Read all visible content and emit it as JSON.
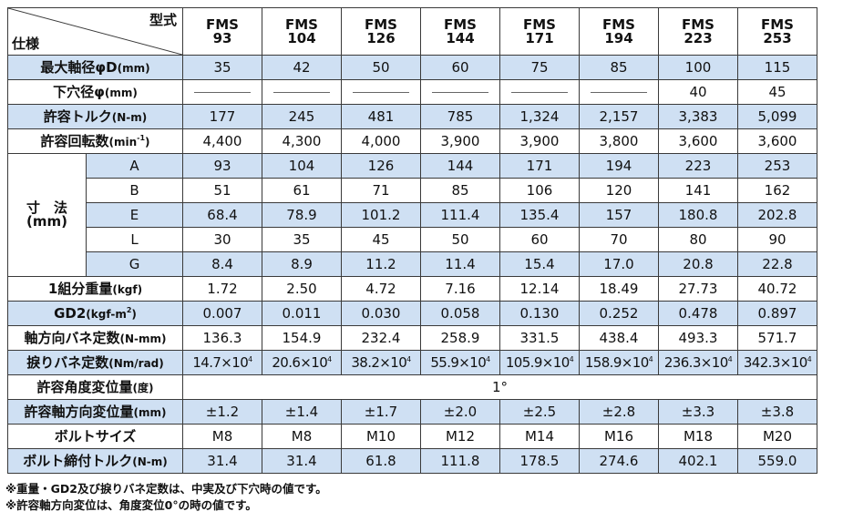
{
  "header": {
    "corner_top": "型式",
    "corner_bottom": "仕様",
    "models": [
      {
        "name": "FMS",
        "size": "93"
      },
      {
        "name": "FMS",
        "size": "104"
      },
      {
        "name": "FMS",
        "size": "126"
      },
      {
        "name": "FMS",
        "size": "144"
      },
      {
        "name": "FMS",
        "size": "171"
      },
      {
        "name": "FMS",
        "size": "194"
      },
      {
        "name": "FMS",
        "size": "223"
      },
      {
        "name": "FMS",
        "size": "253"
      }
    ]
  },
  "rows": {
    "max_bore": {
      "label": "最大軸径φD",
      "unit": "(mm)",
      "values": [
        "35",
        "42",
        "50",
        "60",
        "75",
        "85",
        "100",
        "115"
      ]
    },
    "pilot_bore": {
      "label": "下穴径φ",
      "unit": "(mm)",
      "values": [
        "",
        "",
        "",
        "",
        "",
        "",
        "40",
        "45"
      ]
    },
    "torque": {
      "label": "許容トルク",
      "unit": "(N-m)",
      "values": [
        "177",
        "245",
        "481",
        "785",
        "1,324",
        "2,157",
        "3,383",
        "5,099"
      ]
    },
    "speed": {
      "label": "許容回転数",
      "unit": "(min",
      "unit_sup": "-1",
      "unit_end": ")",
      "values": [
        "4,400",
        "4,300",
        "4,000",
        "3,900",
        "3,900",
        "3,800",
        "3,600",
        "3,600"
      ]
    },
    "dimension_label": {
      "line1": "寸　法",
      "line2": "(mm)"
    },
    "dims": [
      {
        "key": "A",
        "values": [
          "93",
          "104",
          "126",
          "144",
          "171",
          "194",
          "223",
          "253"
        ]
      },
      {
        "key": "B",
        "values": [
          "51",
          "61",
          "71",
          "85",
          "106",
          "120",
          "141",
          "162"
        ]
      },
      {
        "key": "E",
        "values": [
          "68.4",
          "78.9",
          "101.2",
          "111.4",
          "135.4",
          "157",
          "180.8",
          "202.8"
        ]
      },
      {
        "key": "L",
        "values": [
          "30",
          "35",
          "45",
          "50",
          "60",
          "70",
          "80",
          "90"
        ]
      },
      {
        "key": "G",
        "values": [
          "8.4",
          "8.9",
          "11.2",
          "11.4",
          "15.4",
          "17.0",
          "20.8",
          "22.8"
        ]
      }
    ],
    "weight": {
      "label": "1組分重量",
      "unit": "(kgf)",
      "values": [
        "1.72",
        "2.50",
        "4.72",
        "7.16",
        "12.14",
        "18.49",
        "27.73",
        "40.72"
      ]
    },
    "gd2": {
      "label": "GD2",
      "unit": "(kgf-m",
      "unit_sup": "2",
      "unit_end": ")",
      "values": [
        "0.007",
        "0.011",
        "0.030",
        "0.058",
        "0.130",
        "0.252",
        "0.478",
        "0.897"
      ]
    },
    "axial_spring": {
      "label": "軸方向バネ定数",
      "unit": "(N-mm)",
      "values": [
        "136.3",
        "154.9",
        "232.4",
        "258.9",
        "331.5",
        "438.4",
        "493.3",
        "571.7"
      ]
    },
    "torsion_spring": {
      "label": "捩りバネ定数",
      "unit": "(Nm/rad)",
      "values": [
        "14.7×10",
        "20.6×10",
        "38.2×10",
        "55.9×10",
        "105.9×10",
        "158.9×10",
        "236.3×10",
        "342.3×10"
      ],
      "exp": "4"
    },
    "angular": {
      "label": "許容角度変位量",
      "unit": "(度)",
      "value": "1°"
    },
    "axial_disp": {
      "label": "許容軸方向変位量",
      "unit": "(mm)",
      "values": [
        "±1.2",
        "±1.4",
        "±1.7",
        "±2.0",
        "±2.5",
        "±2.8",
        "±3.3",
        "±3.8"
      ]
    },
    "bolt_size": {
      "label": "ボルトサイズ",
      "values": [
        "M8",
        "M8",
        "M10",
        "M12",
        "M14",
        "M16",
        "M18",
        "M20"
      ]
    },
    "bolt_torque": {
      "label": "ボルト締付トルク",
      "unit": "(N-m)",
      "values": [
        "31.4",
        "31.4",
        "61.8",
        "111.8",
        "178.5",
        "274.6",
        "402.1",
        "559.0"
      ]
    }
  },
  "notes": [
    "※重量・GD2及び捩りバネ定数は、中実及び下穴時の値です。",
    "※許容軸方向変位は、角度変位0°の時の値です。"
  ]
}
